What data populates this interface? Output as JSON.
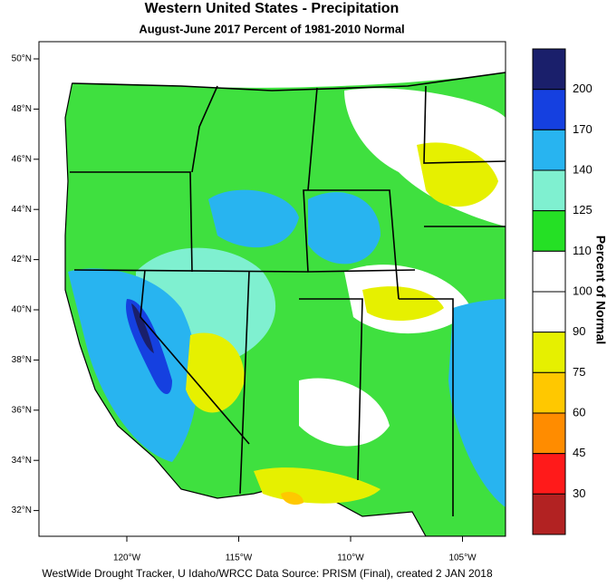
{
  "header": {
    "title": "Western United States - Precipitation",
    "subtitle": "August-June 2017  Percent of 1981-2010 Normal"
  },
  "map": {
    "lat_labels": [
      "50°N",
      "48°N",
      "46°N",
      "44°N",
      "42°N",
      "40°N",
      "38°N",
      "36°N",
      "34°N",
      "32°N"
    ],
    "lon_labels": [
      "120°W",
      "115°W",
      "110°W",
      "105°W"
    ]
  },
  "legend": {
    "title": "Percent of Normal",
    "labels": [
      "200",
      "170",
      "140",
      "125",
      "110",
      "100",
      "90",
      "75",
      "60",
      "45",
      "30"
    ],
    "colors": [
      "#1a1f6b",
      "#1540e0",
      "#28b4f0",
      "#7ff0d0",
      "#25e025",
      "#ffffff",
      "#ffffff",
      "#e6f000",
      "#ffc800",
      "#ff8c00",
      "#ff1a1a",
      "#b22222"
    ]
  },
  "footer": "WestWide Drought Tracker, U Idaho/WRCC Data Source: PRISM (Final), created  2 JAN 2018"
}
